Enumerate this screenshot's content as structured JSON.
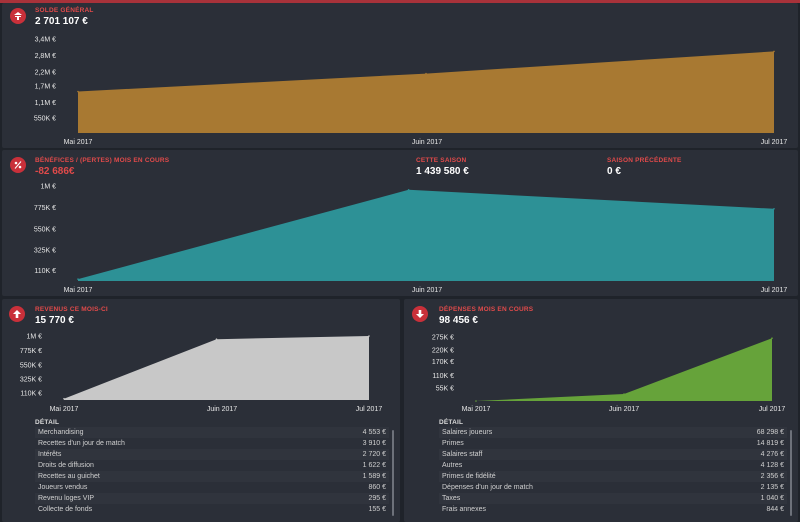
{
  "balance": {
    "label": "SOLDE GÉNÉRAL",
    "value": "2 701 107 €"
  },
  "profit": {
    "label": "BÉNÉFICES / (PERTES) MOIS EN COURS",
    "value": "-82 686€",
    "season_label": "CETTE SAISON",
    "season_value": "1 439 580 €",
    "prev_label": "SAISON PRÉCÉDENTE",
    "prev_value": "0 €"
  },
  "income": {
    "label": "REVENUS CE MOIS-CI",
    "value": "15 770 €",
    "detail_title": "DÉTAIL",
    "rows": [
      {
        "name": "Merchandising",
        "amount": "4 553 €"
      },
      {
        "name": "Recettes d'un jour de match",
        "amount": "3 910 €"
      },
      {
        "name": "Intérêts",
        "amount": "2 720 €"
      },
      {
        "name": "Droits de diffusion",
        "amount": "1 622 €"
      },
      {
        "name": "Recettes au guichet",
        "amount": "1 589 €"
      },
      {
        "name": "Joueurs vendus",
        "amount": "860 €"
      },
      {
        "name": "Revenu loges VIP",
        "amount": "295 €"
      },
      {
        "name": "Collecte de fonds",
        "amount": "155 €"
      }
    ]
  },
  "expenses": {
    "label": "DÉPENSES MOIS EN COURS",
    "value": "98 456 €",
    "detail_title": "DÉTAIL",
    "rows": [
      {
        "name": "Salaires joueurs",
        "amount": "68 298 €"
      },
      {
        "name": "Primes",
        "amount": "14 819 €"
      },
      {
        "name": "Salaires staff",
        "amount": "4 276 €"
      },
      {
        "name": "Autres",
        "amount": "4 128 €"
      },
      {
        "name": "Primes de fidélité",
        "amount": "2 356 €"
      },
      {
        "name": "Dépenses d'un jour de match",
        "amount": "2 135 €"
      },
      {
        "name": "Taxes",
        "amount": "1 040 €"
      },
      {
        "name": "Frais annexes",
        "amount": "844 €"
      }
    ]
  },
  "colors": {
    "balance": "#a87932",
    "profit": "#2d9196",
    "income": "#c8c8c8",
    "expenses": "#66a33a",
    "accent": "#c9303a"
  },
  "icons": [
    "balance-icon",
    "profit-loss-icon",
    "income-arrow-up-icon",
    "expenses-arrow-down-icon"
  ],
  "chart_data": [
    {
      "type": "area",
      "title": "SOLDE GÉNÉRAL",
      "categories": [
        "Mai 2017",
        "Juin 2017",
        "Jul 2017"
      ],
      "x": [
        0,
        1,
        2
      ],
      "values": [
        1500000,
        2150000,
        2950000
      ],
      "y_ticks": [
        "550K €",
        "1,1M €",
        "1,7M €",
        "2,2M €",
        "2,8M €",
        "3,4M €"
      ],
      "y_tick_values": [
        550000,
        1100000,
        1700000,
        2200000,
        2800000,
        3400000
      ],
      "ylim": [
        0,
        3400000
      ]
    },
    {
      "type": "area",
      "title": "BÉNÉFICES / (PERTES) MOIS EN COURS",
      "categories": [
        "Mai 2017",
        "Juin 2017",
        "Jul 2017"
      ],
      "x": [
        0,
        0.95,
        2
      ],
      "values": [
        20000,
        960000,
        760000
      ],
      "y_ticks": [
        "110K €",
        "325K €",
        "550K €",
        "775K €",
        "1M €"
      ],
      "y_tick_values": [
        110000,
        325000,
        550000,
        775000,
        1000000
      ],
      "ylim": [
        0,
        1000000
      ]
    },
    {
      "type": "area",
      "title": "REVENUS CE MOIS-CI",
      "categories": [
        "Mai 2017",
        "Juin 2017",
        "Jul 2017"
      ],
      "x": [
        0,
        1,
        2
      ],
      "values": [
        20000,
        950000,
        1000000
      ],
      "y_ticks": [
        "110K €",
        "325K €",
        "550K €",
        "775K €",
        "1M €"
      ],
      "y_tick_values": [
        110000,
        325000,
        550000,
        775000,
        1000000
      ],
      "ylim": [
        0,
        1000000
      ]
    },
    {
      "type": "area",
      "title": "DÉPENSES MOIS EN COURS",
      "categories": [
        "Mai 2017",
        "Juin 2017",
        "Jul 2017"
      ],
      "x": [
        0,
        1,
        2
      ],
      "values": [
        0,
        30000,
        270000
      ],
      "y_ticks": [
        "55K €",
        "110K €",
        "170K €",
        "220K €",
        "275K €"
      ],
      "y_tick_values": [
        55000,
        110000,
        170000,
        220000,
        275000
      ],
      "ylim": [
        0,
        275000
      ]
    }
  ]
}
